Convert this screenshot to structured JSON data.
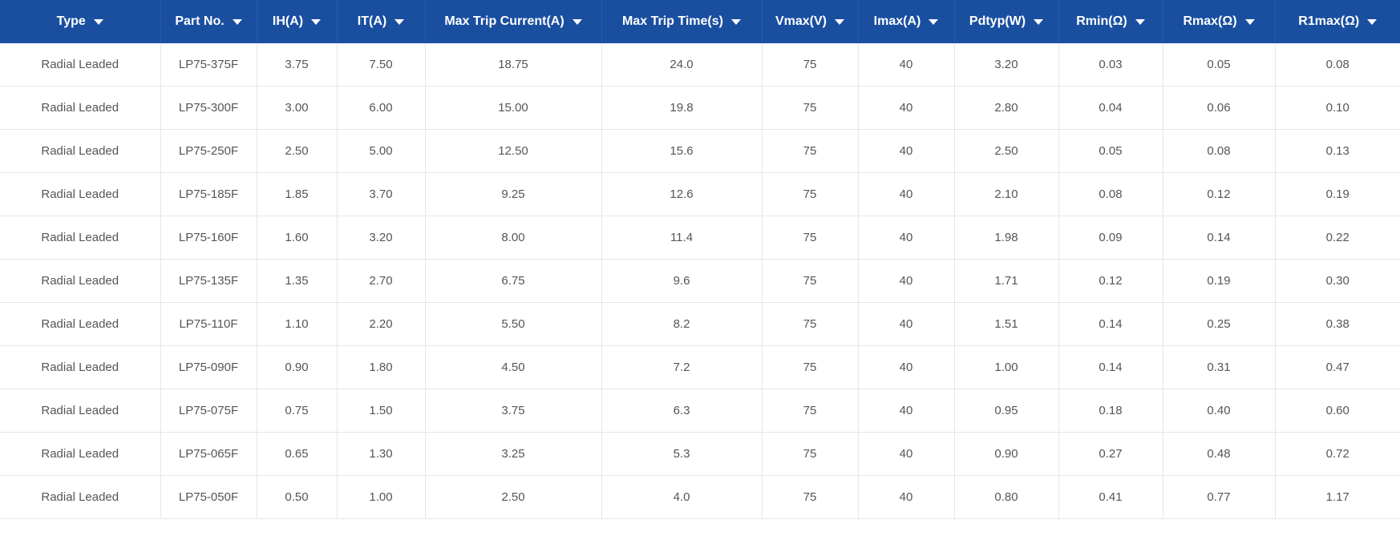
{
  "table": {
    "header_bg": "#1a4fa0",
    "header_fg": "#ffffff",
    "row_border": "#e6e6e6",
    "text_color": "#555555",
    "columns": [
      {
        "label": "Type",
        "sortable": true
      },
      {
        "label": "Part No.",
        "sortable": true
      },
      {
        "label": "IH(A)",
        "sortable": true
      },
      {
        "label": "IT(A)",
        "sortable": true
      },
      {
        "label": "Max Trip Current(A)",
        "sortable": true
      },
      {
        "label": "Max Trip Time(s)",
        "sortable": true
      },
      {
        "label": "Vmax(V)",
        "sortable": true
      },
      {
        "label": "Imax(A)",
        "sortable": true
      },
      {
        "label": "Pdtyp(W)",
        "sortable": true
      },
      {
        "label": "Rmin(Ω)",
        "sortable": true
      },
      {
        "label": "Rmax(Ω)",
        "sortable": true
      },
      {
        "label": "R1max(Ω)",
        "sortable": true
      }
    ],
    "rows": [
      [
        "Radial Leaded",
        "LP75-375F",
        "3.75",
        "7.50",
        "18.75",
        "24.0",
        "75",
        "40",
        "3.20",
        "0.03",
        "0.05",
        "0.08"
      ],
      [
        "Radial Leaded",
        "LP75-300F",
        "3.00",
        "6.00",
        "15.00",
        "19.8",
        "75",
        "40",
        "2.80",
        "0.04",
        "0.06",
        "0.10"
      ],
      [
        "Radial Leaded",
        "LP75-250F",
        "2.50",
        "5.00",
        "12.50",
        "15.6",
        "75",
        "40",
        "2.50",
        "0.05",
        "0.08",
        "0.13"
      ],
      [
        "Radial Leaded",
        "LP75-185F",
        "1.85",
        "3.70",
        "9.25",
        "12.6",
        "75",
        "40",
        "2.10",
        "0.08",
        "0.12",
        "0.19"
      ],
      [
        "Radial Leaded",
        "LP75-160F",
        "1.60",
        "3.20",
        "8.00",
        "11.4",
        "75",
        "40",
        "1.98",
        "0.09",
        "0.14",
        "0.22"
      ],
      [
        "Radial Leaded",
        "LP75-135F",
        "1.35",
        "2.70",
        "6.75",
        "9.6",
        "75",
        "40",
        "1.71",
        "0.12",
        "0.19",
        "0.30"
      ],
      [
        "Radial Leaded",
        "LP75-110F",
        "1.10",
        "2.20",
        "5.50",
        "8.2",
        "75",
        "40",
        "1.51",
        "0.14",
        "0.25",
        "0.38"
      ],
      [
        "Radial Leaded",
        "LP75-090F",
        "0.90",
        "1.80",
        "4.50",
        "7.2",
        "75",
        "40",
        "1.00",
        "0.14",
        "0.31",
        "0.47"
      ],
      [
        "Radial Leaded",
        "LP75-075F",
        "0.75",
        "1.50",
        "3.75",
        "6.3",
        "75",
        "40",
        "0.95",
        "0.18",
        "0.40",
        "0.60"
      ],
      [
        "Radial Leaded",
        "LP75-065F",
        "0.65",
        "1.30",
        "3.25",
        "5.3",
        "75",
        "40",
        "0.90",
        "0.27",
        "0.48",
        "0.72"
      ],
      [
        "Radial Leaded",
        "LP75-050F",
        "0.50",
        "1.00",
        "2.50",
        "4.0",
        "75",
        "40",
        "0.80",
        "0.41",
        "0.77",
        "1.17"
      ]
    ]
  }
}
